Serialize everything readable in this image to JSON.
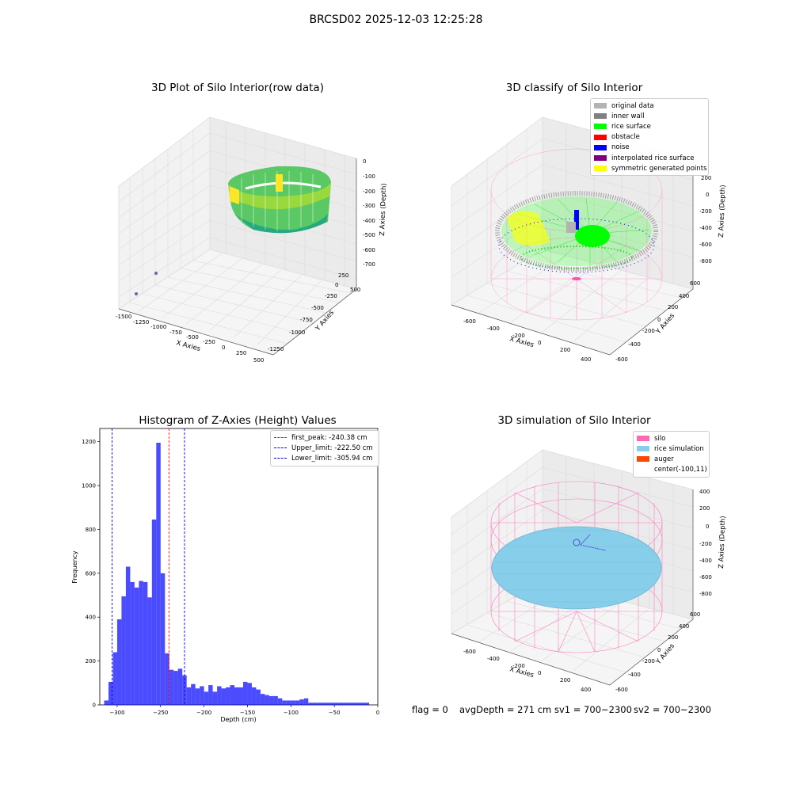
{
  "figure": {
    "suptitle": "BRCSD02 2025-12-03 12:25:28",
    "footer": {
      "flag": "flag = 0",
      "avg_depth": "avgDepth = 271 cm",
      "sv1": "sv1 = 700~2300",
      "sv2": "sv2 = 700~2300"
    }
  },
  "plot_raw": {
    "title": "3D Plot of Silo Interior(row data)",
    "xlabel": "X Axies",
    "ylabel": "Y Axies",
    "zlabel": "Z Axies (Depth)",
    "xticks": [
      "-1500",
      "-1250",
      "-1000",
      "-750",
      "-500",
      "-250",
      "0",
      "250",
      "500"
    ],
    "yticks": [
      "-1250",
      "-1000",
      "-750",
      "-500",
      "-250",
      "0",
      "250",
      "500"
    ],
    "zticks": [
      "0",
      "-100",
      "-200",
      "-300",
      "-400",
      "-500",
      "-600",
      "-700"
    ]
  },
  "plot_classify": {
    "title": "3D classify of Silo Interior",
    "xlabel": "X Axies",
    "ylabel": "Y Axies",
    "zlabel": "Z Axies (Depth)",
    "xticks": [
      "-600",
      "-400",
      "-200",
      "0",
      "200",
      "400"
    ],
    "yticks": [
      "-600",
      "-400",
      "-200",
      "0",
      "200",
      "400",
      "600"
    ],
    "zticks": [
      "200",
      "0",
      "-200",
      "-400",
      "-600",
      "-800"
    ],
    "legend": [
      {
        "label": "original data",
        "color": "#b3b3b3"
      },
      {
        "label": "inner wall",
        "color": "#808080"
      },
      {
        "label": "rice surface",
        "color": "#00ff00"
      },
      {
        "label": "obstacle",
        "color": "#ff0000"
      },
      {
        "label": "noise",
        "color": "#0000ff"
      },
      {
        "label": "interpolated rice surface",
        "color": "#800080"
      },
      {
        "label": "symmetric generated points",
        "color": "#ffff00"
      }
    ]
  },
  "plot_simulation": {
    "title": "3D simulation of Silo Interior",
    "xlabel": "X Axies",
    "ylabel": "Y Axies",
    "zlabel": "Z Axies (Depth)",
    "xticks": [
      "-600",
      "-400",
      "-200",
      "0",
      "200",
      "400"
    ],
    "yticks": [
      "-600",
      "-400",
      "-200",
      "0",
      "200",
      "400",
      "600"
    ],
    "zticks": [
      "400",
      "200",
      "0",
      "-200",
      "-400",
      "-600",
      "-800"
    ],
    "legend": [
      {
        "label": "silo",
        "color": "#ff69b4"
      },
      {
        "label": "rice simulation",
        "color": "#87ceeb"
      },
      {
        "label": "auger",
        "color": "#ff4500"
      },
      {
        "label": "center(-100,11)",
        "color": ""
      }
    ]
  },
  "chart_data": {
    "type": "bar",
    "title": "Histogram of Z-Axies (Height) Values",
    "xlabel": "Depth (cm)",
    "ylabel": "Frequency",
    "xlim": [
      -320,
      0
    ],
    "ylim": [
      0,
      1260
    ],
    "xticks": [
      -300,
      -250,
      -200,
      -150,
      -100,
      -50,
      0
    ],
    "yticks": [
      0,
      200,
      400,
      600,
      800,
      1000,
      1200
    ],
    "bar_color": "#0000ff",
    "bin_width": 5,
    "bin_starts": [
      -315,
      -310,
      -305,
      -300,
      -295,
      -290,
      -285,
      -280,
      -275,
      -270,
      -265,
      -260,
      -255,
      -250,
      -245,
      -240,
      -235,
      -230,
      -225,
      -220,
      -215,
      -210,
      -205,
      -200,
      -195,
      -190,
      -185,
      -180,
      -175,
      -170,
      -165,
      -160,
      -155,
      -150,
      -145,
      -140,
      -135,
      -130,
      -125,
      -120,
      -115,
      -110,
      -105,
      -100,
      -95,
      -90,
      -85,
      -80,
      -75,
      -70,
      -65,
      -60,
      -55,
      -50,
      -45,
      -40,
      -35,
      -30,
      -25,
      -20,
      -15
    ],
    "values": [
      20,
      105,
      240,
      390,
      495,
      630,
      560,
      535,
      565,
      560,
      490,
      845,
      1195,
      600,
      235,
      160,
      155,
      165,
      135,
      80,
      95,
      75,
      85,
      60,
      90,
      60,
      85,
      75,
      80,
      90,
      80,
      80,
      105,
      100,
      80,
      70,
      50,
      45,
      40,
      40,
      30,
      20,
      20,
      20,
      20,
      25,
      30,
      10,
      10,
      10,
      10,
      10,
      10,
      10,
      10,
      10,
      10,
      10,
      10,
      10,
      10
    ],
    "lines": [
      {
        "name": "first_peak: -240.38 cm",
        "x": -240.38,
        "color": "#ff0000"
      },
      {
        "name": "Upper_limit: -222.50 cm",
        "x": -222.5,
        "color": "#0000ff"
      },
      {
        "name": "Lower_limit: -305.94 cm",
        "x": -305.94,
        "color": "#0000cc"
      }
    ]
  }
}
